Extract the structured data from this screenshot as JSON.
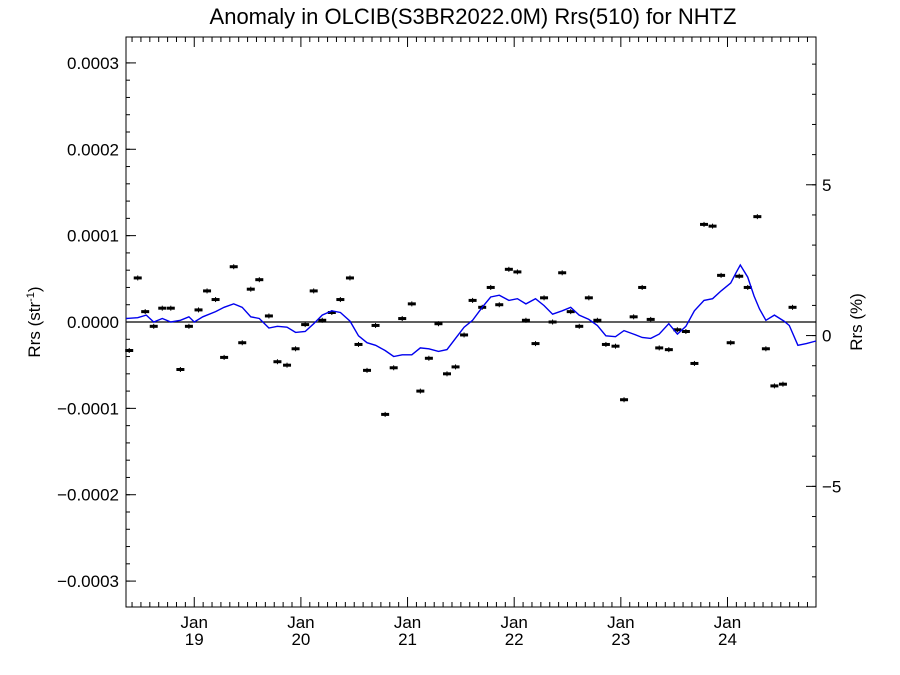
{
  "chart_data": {
    "type": "scatter",
    "title": "Anomaly in OLCIB(S3BR2022.0M) Rrs(510) for NHTZ",
    "ylabel": "Rrs (str",
    "ylabel_sup": "-1",
    "ylabel_close": ")",
    "y2label": "Rrs (%)",
    "x_unit": "decimal_year",
    "xlim": [
      2018.36,
      2024.83
    ],
    "ylim": [
      -0.00033,
      0.00033
    ],
    "y2lim": [
      -9.0,
      9.9
    ],
    "xticks": [
      {
        "value": 2019.0,
        "month": "Jan",
        "year": "19"
      },
      {
        "value": 2020.0,
        "month": "Jan",
        "year": "20"
      },
      {
        "value": 2021.0,
        "month": "Jan",
        "year": "21"
      },
      {
        "value": 2022.0,
        "month": "Jan",
        "year": "22"
      },
      {
        "value": 2023.0,
        "month": "Jan",
        "year": "23"
      },
      {
        "value": 2024.0,
        "month": "Jan",
        "year": "24"
      }
    ],
    "yticks": [
      {
        "value": 0.0003,
        "label": "0.0003"
      },
      {
        "value": 0.0002,
        "label": "0.0002"
      },
      {
        "value": 0.0001,
        "label": "0.0001"
      },
      {
        "value": 0.0,
        "label": "0.0000"
      },
      {
        "value": -0.0001,
        "label": "−0.0001"
      },
      {
        "value": -0.0002,
        "label": "−0.0002"
      },
      {
        "value": -0.0003,
        "label": "−0.0003"
      }
    ],
    "y2ticks": [
      {
        "value": 5,
        "label": "5"
      },
      {
        "value": 0,
        "label": "0"
      },
      {
        "value": -5,
        "label": "−5"
      }
    ],
    "zero_line": true,
    "series": [
      {
        "kind": "markers",
        "color": "#000000",
        "points": [
          [
            2018.39,
            -3.3e-05
          ],
          [
            2018.47,
            5.1e-05
          ],
          [
            2018.54,
            1.2e-05
          ],
          [
            2018.62,
            -5e-06
          ],
          [
            2018.7,
            1.6e-05
          ],
          [
            2018.78,
            1.6e-05
          ],
          [
            2018.87,
            -5.5e-05
          ],
          [
            2018.95,
            -5e-06
          ],
          [
            2019.04,
            1.4e-05
          ],
          [
            2019.12,
            3.6e-05
          ],
          [
            2019.2,
            2.6e-05
          ],
          [
            2019.28,
            -4.1e-05
          ],
          [
            2019.37,
            6.4e-05
          ],
          [
            2019.45,
            -2.4e-05
          ],
          [
            2019.53,
            3.8e-05
          ],
          [
            2019.61,
            4.9e-05
          ],
          [
            2019.7,
            7e-06
          ],
          [
            2019.78,
            -4.6e-05
          ],
          [
            2019.87,
            -5e-05
          ],
          [
            2019.95,
            -3.1e-05
          ],
          [
            2020.04,
            -3e-06
          ],
          [
            2020.12,
            3.6e-05
          ],
          [
            2020.2,
            2e-06
          ],
          [
            2020.29,
            1.1e-05
          ],
          [
            2020.37,
            2.6e-05
          ],
          [
            2020.46,
            5.1e-05
          ],
          [
            2020.54,
            -2.6e-05
          ],
          [
            2020.62,
            -5.6e-05
          ],
          [
            2020.7,
            -4e-06
          ],
          [
            2020.79,
            -0.000107
          ],
          [
            2020.87,
            -5.3e-05
          ],
          [
            2020.95,
            4e-06
          ],
          [
            2021.04,
            2.1e-05
          ],
          [
            2021.12,
            -8e-05
          ],
          [
            2021.2,
            -4.2e-05
          ],
          [
            2021.29,
            -2e-06
          ],
          [
            2021.37,
            -6e-05
          ],
          [
            2021.45,
            -5.2e-05
          ],
          [
            2021.53,
            -1.5e-05
          ],
          [
            2021.61,
            2.5e-05
          ],
          [
            2021.7,
            1.7e-05
          ],
          [
            2021.78,
            4e-05
          ],
          [
            2021.86,
            2e-05
          ],
          [
            2021.95,
            6.1e-05
          ],
          [
            2022.03,
            5.8e-05
          ],
          [
            2022.11,
            2e-06
          ],
          [
            2022.2,
            -2.5e-05
          ],
          [
            2022.28,
            2.8e-05
          ],
          [
            2022.36,
            0.0
          ],
          [
            2022.45,
            5.7e-05
          ],
          [
            2022.53,
            1.2e-05
          ],
          [
            2022.61,
            -5e-06
          ],
          [
            2022.7,
            2.8e-05
          ],
          [
            2022.78,
            2e-06
          ],
          [
            2022.86,
            -2.6e-05
          ],
          [
            2022.95,
            -2.8e-05
          ],
          [
            2023.03,
            -9e-05
          ],
          [
            2023.12,
            6e-06
          ],
          [
            2023.2,
            4e-05
          ],
          [
            2023.28,
            3e-06
          ],
          [
            2023.36,
            -3e-05
          ],
          [
            2023.45,
            -3.2e-05
          ],
          [
            2023.53,
            -9e-06
          ],
          [
            2023.61,
            -1.1e-05
          ],
          [
            2023.69,
            -4.8e-05
          ],
          [
            2023.78,
            0.000113
          ],
          [
            2023.86,
            0.000111
          ],
          [
            2023.94,
            5.4e-05
          ],
          [
            2024.03,
            -2.4e-05
          ],
          [
            2024.11,
            5.3e-05
          ],
          [
            2024.19,
            4e-05
          ],
          [
            2024.28,
            0.000122
          ],
          [
            2024.36,
            -3.1e-05
          ],
          [
            2024.44,
            -7.4e-05
          ],
          [
            2024.52,
            -7.2e-05
          ],
          [
            2024.61,
            1.7e-05
          ]
        ]
      },
      {
        "kind": "line",
        "color": "#0000ee",
        "points": [
          [
            2018.36,
            4e-06
          ],
          [
            2018.47,
            5e-06
          ],
          [
            2018.55,
            8e-06
          ],
          [
            2018.62,
            0.0
          ],
          [
            2018.7,
            4e-06
          ],
          [
            2018.78,
            0.0
          ],
          [
            2018.87,
            2e-06
          ],
          [
            2018.95,
            6e-06
          ],
          [
            2019.0,
            0.0
          ],
          [
            2019.08,
            6e-06
          ],
          [
            2019.2,
            1.2e-05
          ],
          [
            2019.28,
            1.7e-05
          ],
          [
            2019.37,
            2.1e-05
          ],
          [
            2019.45,
            1.7e-05
          ],
          [
            2019.53,
            6e-06
          ],
          [
            2019.61,
            4e-06
          ],
          [
            2019.7,
            -7e-06
          ],
          [
            2019.78,
            -5e-06
          ],
          [
            2019.87,
            -6e-06
          ],
          [
            2019.95,
            -1.2e-05
          ],
          [
            2020.04,
            -1.1e-05
          ],
          [
            2020.12,
            -2e-06
          ],
          [
            2020.2,
            8e-06
          ],
          [
            2020.29,
            1.3e-05
          ],
          [
            2020.37,
            1.1e-05
          ],
          [
            2020.46,
            1e-06
          ],
          [
            2020.54,
            -1.6e-05
          ],
          [
            2020.62,
            -2.4e-05
          ],
          [
            2020.7,
            -2.7e-05
          ],
          [
            2020.79,
            -3.3e-05
          ],
          [
            2020.87,
            -4e-05
          ],
          [
            2020.95,
            -3.8e-05
          ],
          [
            2021.04,
            -3.8e-05
          ],
          [
            2021.12,
            -3e-05
          ],
          [
            2021.2,
            -3.1e-05
          ],
          [
            2021.29,
            -3.4e-05
          ],
          [
            2021.37,
            -3.2e-05
          ],
          [
            2021.45,
            -1.9e-05
          ],
          [
            2021.53,
            -6e-06
          ],
          [
            2021.61,
            2e-06
          ],
          [
            2021.7,
            1.7e-05
          ],
          [
            2021.78,
            2.9e-05
          ],
          [
            2021.86,
            3.1e-05
          ],
          [
            2021.95,
            2.5e-05
          ],
          [
            2022.03,
            2.7e-05
          ],
          [
            2022.11,
            2.1e-05
          ],
          [
            2022.2,
            2.7e-05
          ],
          [
            2022.28,
            1.9e-05
          ],
          [
            2022.36,
            9e-06
          ],
          [
            2022.45,
            1.3e-05
          ],
          [
            2022.53,
            1.7e-05
          ],
          [
            2022.61,
            8e-06
          ],
          [
            2022.7,
            3e-06
          ],
          [
            2022.78,
            -4e-06
          ],
          [
            2022.86,
            -1.6e-05
          ],
          [
            2022.95,
            -1.7e-05
          ],
          [
            2023.03,
            -1e-05
          ],
          [
            2023.12,
            -1.4e-05
          ],
          [
            2023.2,
            -1.8e-05
          ],
          [
            2023.28,
            -1.9e-05
          ],
          [
            2023.36,
            -1.4e-05
          ],
          [
            2023.45,
            -2e-06
          ],
          [
            2023.53,
            -1.4e-05
          ],
          [
            2023.61,
            -5e-06
          ],
          [
            2023.69,
            1.3e-05
          ],
          [
            2023.78,
            2.5e-05
          ],
          [
            2023.86,
            2.7e-05
          ],
          [
            2023.94,
            3.6e-05
          ],
          [
            2024.03,
            4.5e-05
          ],
          [
            2024.08,
            5.7e-05
          ],
          [
            2024.12,
            6.6e-05
          ],
          [
            2024.19,
            5.2e-05
          ],
          [
            2024.25,
            3e-05
          ],
          [
            2024.3,
            1.5e-05
          ],
          [
            2024.36,
            2e-06
          ],
          [
            2024.44,
            8e-06
          ],
          [
            2024.53,
            1e-06
          ],
          [
            2024.58,
            -4e-06
          ],
          [
            2024.66,
            -2.7e-05
          ],
          [
            2024.74,
            -2.5e-05
          ],
          [
            2024.83,
            -2.2e-05
          ]
        ]
      }
    ]
  }
}
